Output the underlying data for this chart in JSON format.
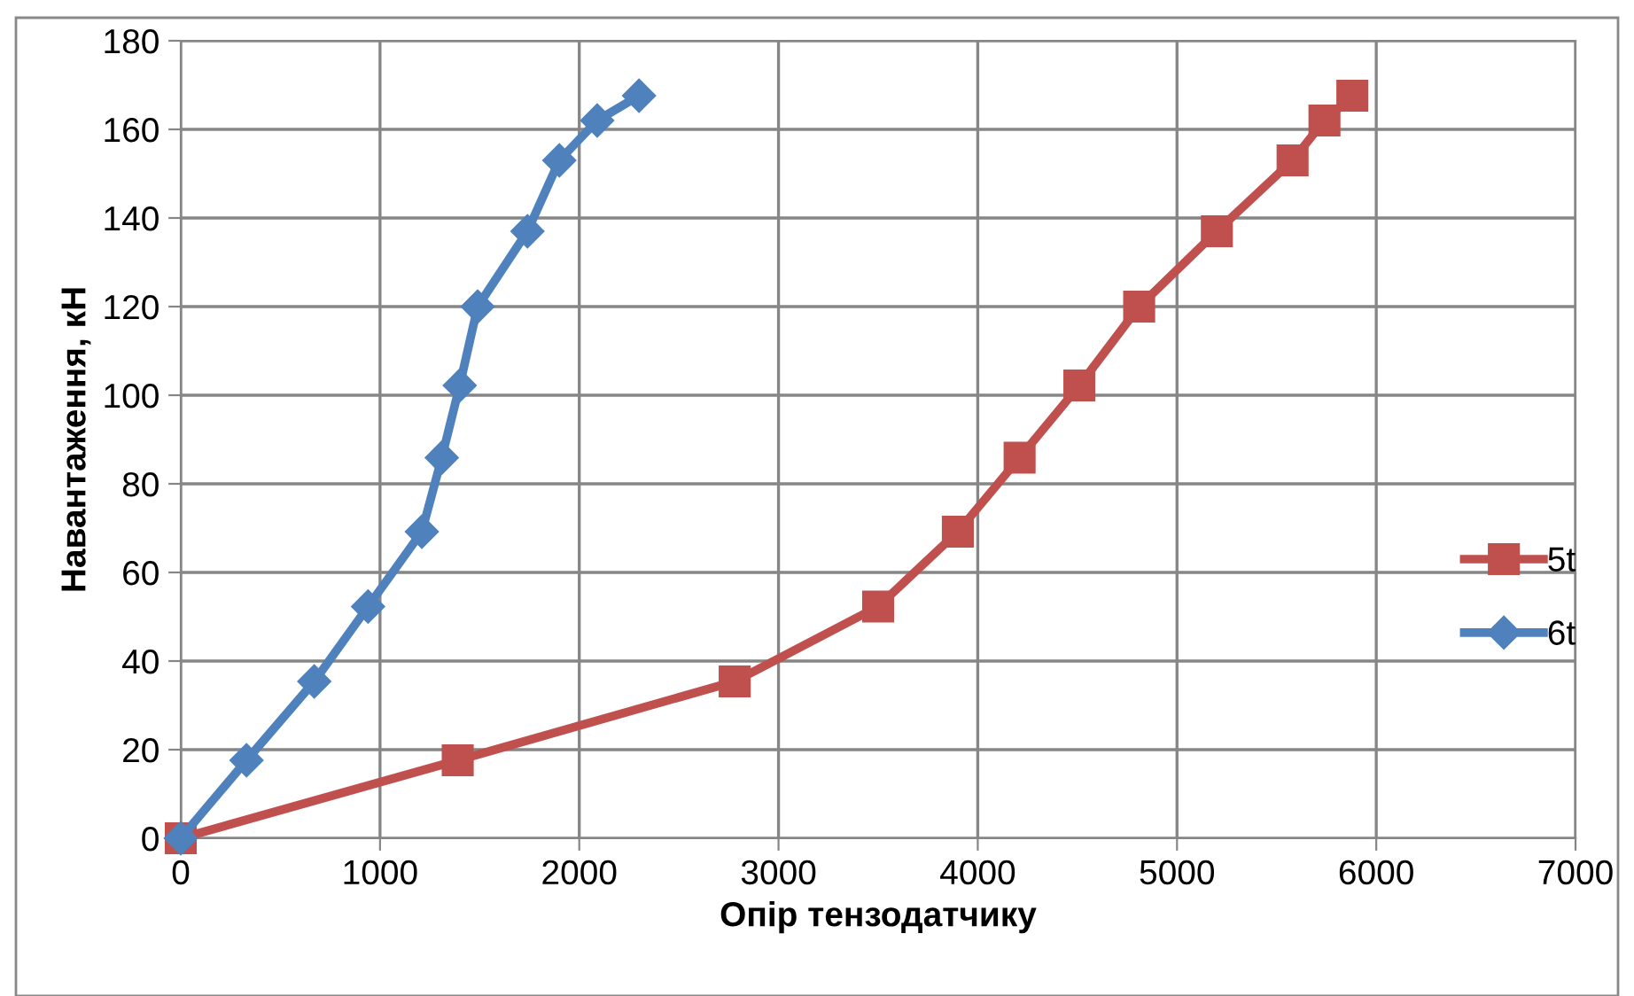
{
  "chart_data": {
    "type": "line",
    "xlabel": "Опір тензодатчику",
    "ylabel": "Навантаження, кН",
    "series": [
      {
        "name": "5t",
        "color": "#c0504d",
        "marker": "square",
        "x": [
          0,
          1390,
          2780,
          3500,
          3900,
          4210,
          4510,
          4810,
          5200,
          5580,
          5740,
          5880
        ],
        "values": [
          0,
          17.6,
          35.4,
          52.3,
          69.2,
          85.9,
          102.2,
          120,
          137,
          153,
          162,
          167.6
        ]
      },
      {
        "name": "6t",
        "color": "#4f81bd",
        "marker": "diamond",
        "x": [
          0,
          330,
          670,
          940,
          1210,
          1310,
          1400,
          1490,
          1740,
          1900,
          2090,
          2300
        ],
        "values": [
          0,
          17.6,
          35.4,
          52.3,
          69.2,
          85.9,
          102.2,
          120,
          137,
          153,
          162,
          167.6
        ]
      }
    ],
    "xlim": [
      0,
      7000
    ],
    "xticks": [
      0,
      1000,
      2000,
      3000,
      4000,
      5000,
      6000,
      7000
    ],
    "ylim": [
      0,
      180
    ],
    "yticks": [
      0,
      20,
      40,
      60,
      80,
      100,
      120,
      140,
      160,
      180
    ],
    "grid": true,
    "legend": "right",
    "line_style": "solid"
  }
}
